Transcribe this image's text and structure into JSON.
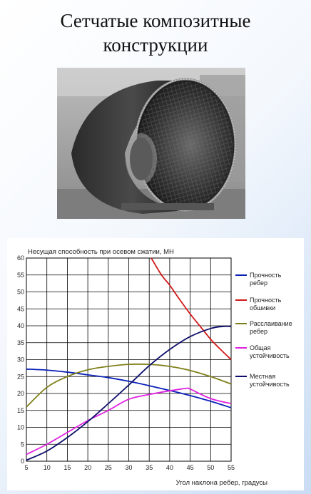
{
  "slide": {
    "title_line1": "Сетчатые композитные",
    "title_line2": "конструкции"
  },
  "photo": {
    "icon": "composite-lattice-cylinder-photo"
  },
  "chart_data": {
    "type": "line",
    "title": "",
    "ylabel": "Несущая способность при осевом сжатии, МН",
    "xlabel": "Угол наклона ребер, градусы",
    "xlim": [
      5,
      55
    ],
    "ylim": [
      0,
      60
    ],
    "xticks": [
      5,
      10,
      15,
      20,
      25,
      30,
      35,
      40,
      45,
      50,
      55
    ],
    "yticks": [
      0,
      5,
      10,
      15,
      20,
      25,
      30,
      35,
      40,
      45,
      50,
      55,
      60
    ],
    "grid": true,
    "legend_position": "right",
    "series": [
      {
        "name": "Прочность ребер",
        "color": "#0a1fb8",
        "x": [
          5,
          10,
          15,
          20,
          25,
          30,
          35,
          40,
          45,
          50,
          55
        ],
        "y": [
          27.2,
          26.9,
          26.3,
          25.5,
          24.7,
          23.6,
          22.3,
          20.9,
          19.4,
          17.7,
          15.8
        ]
      },
      {
        "name": "Прочность обшивки",
        "color": "#d01818",
        "x": [
          35.5,
          38,
          40,
          42,
          45,
          48,
          50,
          52,
          55
        ],
        "y": [
          60,
          55,
          52,
          48.5,
          43.5,
          39,
          36,
          33.5,
          30
        ]
      },
      {
        "name": "Расслаивание ребер",
        "color": "#7f7f1a",
        "x": [
          5,
          10,
          15,
          20,
          25,
          30,
          35,
          40,
          45,
          50,
          55
        ],
        "y": [
          16,
          21.8,
          25,
          27,
          28,
          28.6,
          28.6,
          28,
          26.8,
          25,
          22.8
        ]
      },
      {
        "name": "Общая устойчивость",
        "color": "#e020e0",
        "x": [
          5,
          10,
          15,
          20,
          25,
          30,
          35,
          40,
          44,
          45,
          50,
          55
        ],
        "y": [
          2,
          5,
          8.5,
          12,
          15,
          18.3,
          19.7,
          20.8,
          21.5,
          21.3,
          18.5,
          17
        ]
      },
      {
        "name": "Местная устойчивость",
        "color": "#0d0d6b",
        "x": [
          5,
          10,
          15,
          20,
          25,
          30,
          35,
          40,
          45,
          50,
          53,
          55
        ],
        "y": [
          0.3,
          3,
          7,
          11.7,
          17,
          22.5,
          28.2,
          33,
          36.8,
          39.2,
          39.8,
          39.8
        ]
      }
    ]
  }
}
